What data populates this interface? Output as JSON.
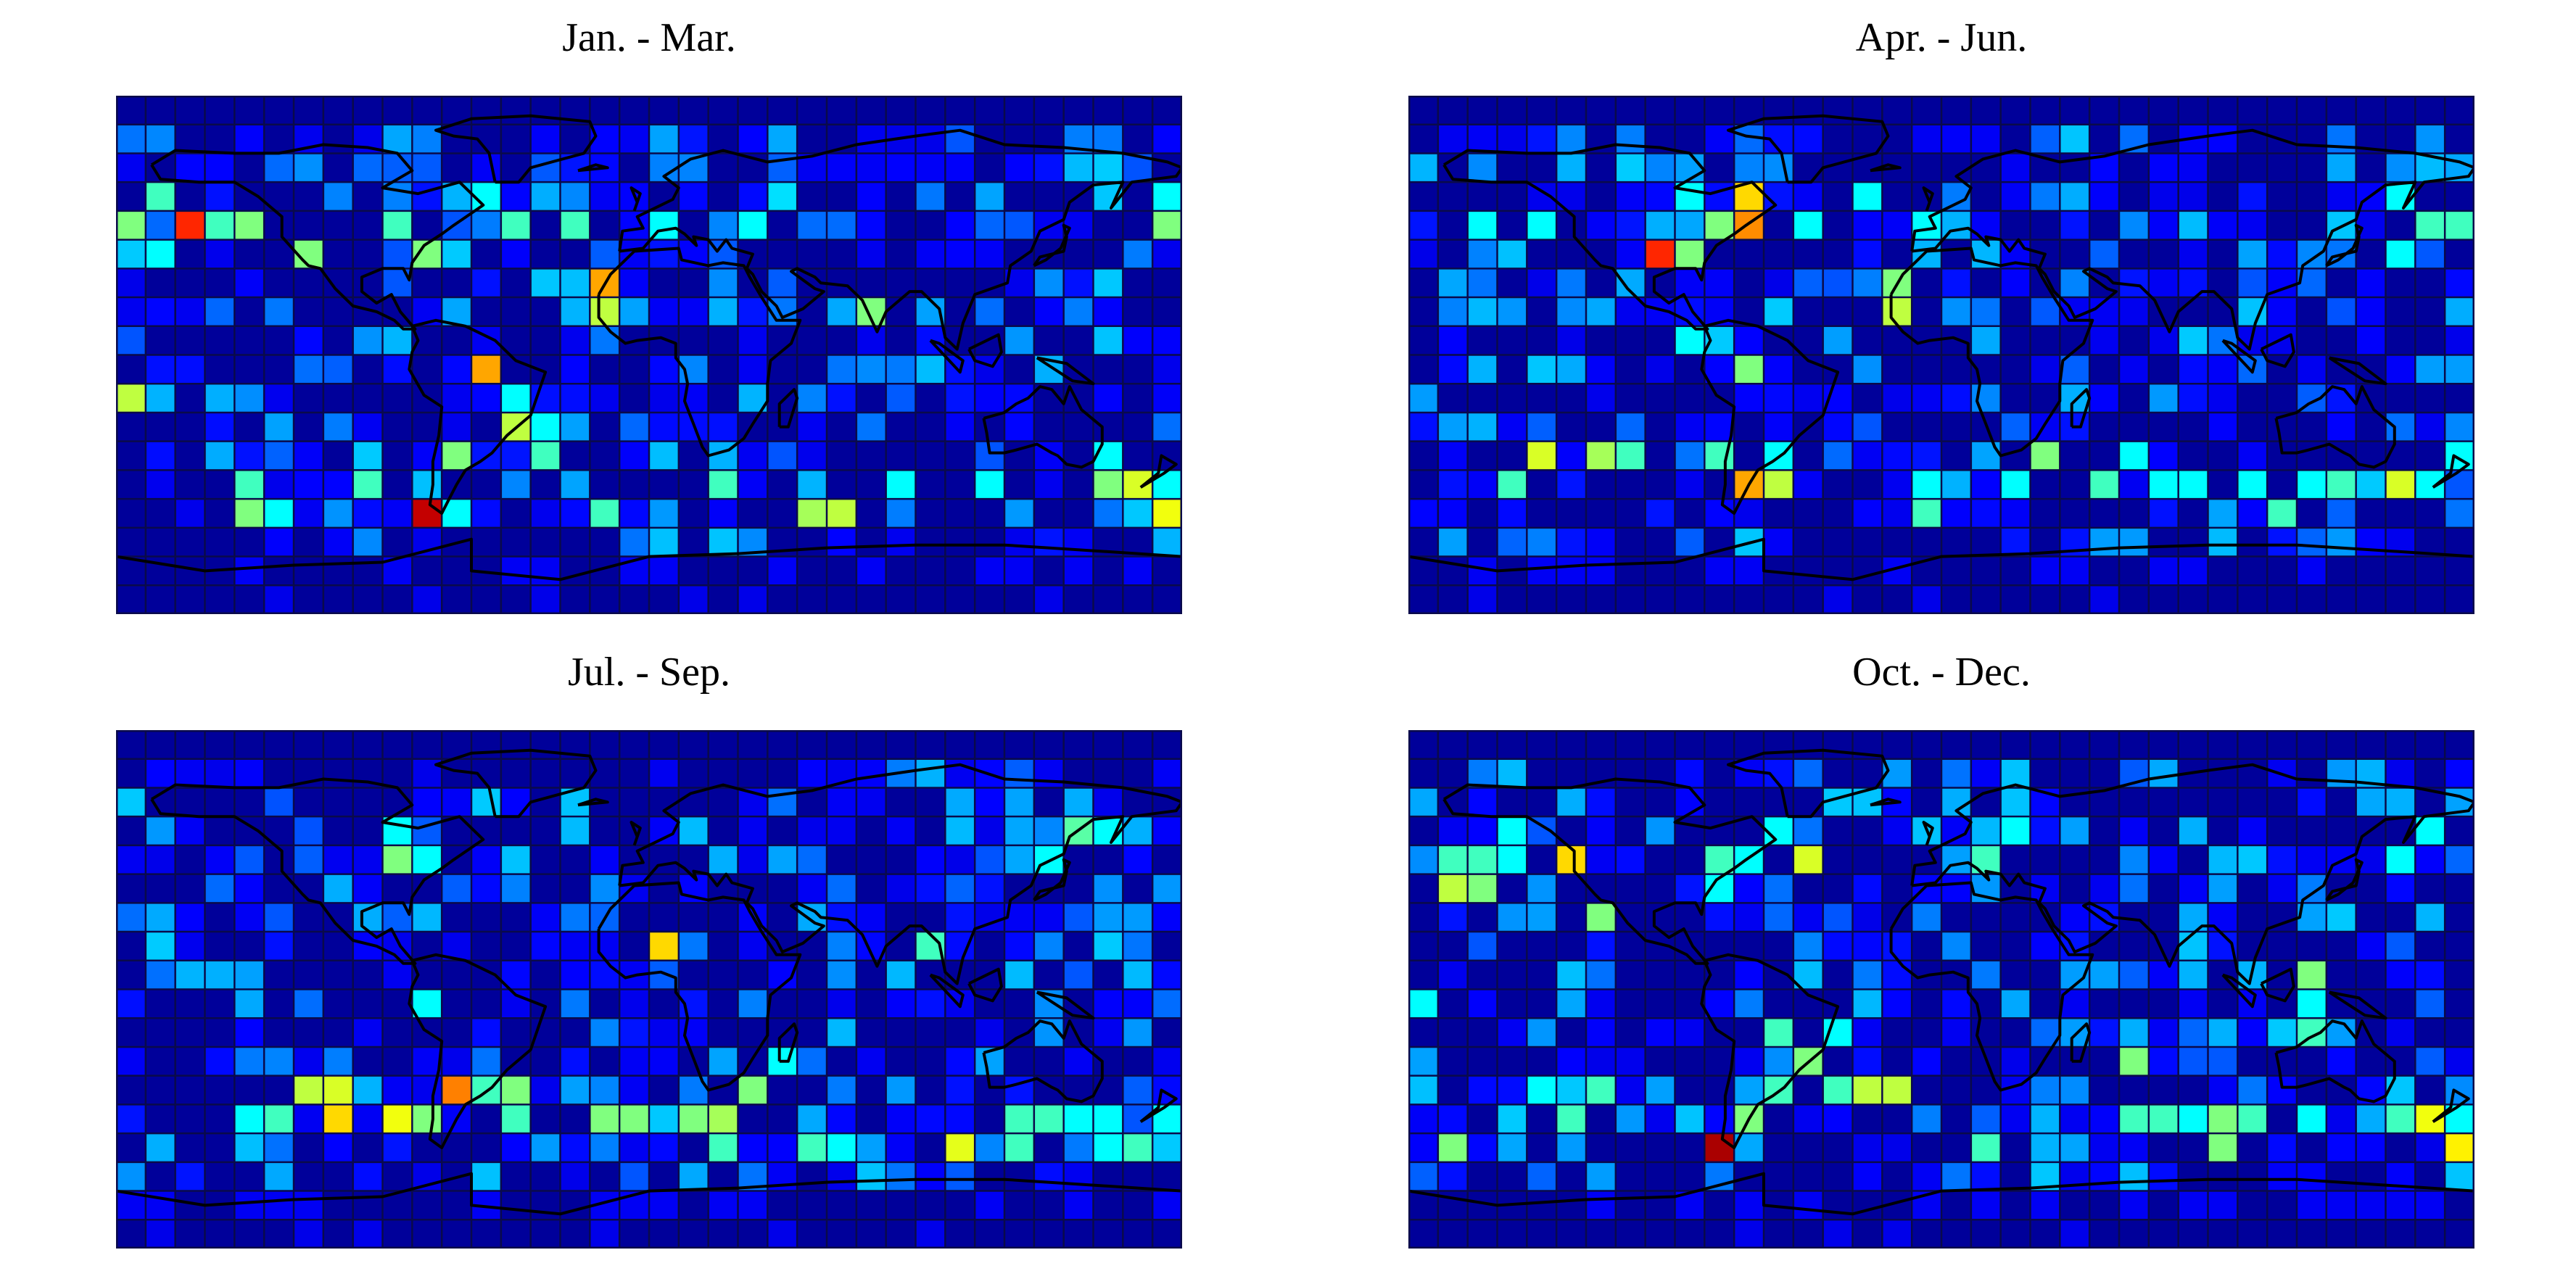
{
  "figure": {
    "colormap": "jet",
    "colormap_stops": [
      "#00008F",
      "#0000FF",
      "#00FFFF",
      "#FFFF00",
      "#FF0000",
      "#800000"
    ],
    "grid_color": "#0a0a4a",
    "coast_color": "#000000",
    "grid": {
      "rows": 18,
      "cols": 36
    }
  },
  "panels": [
    {
      "title": "Jan. - Mar.",
      "hotspots": [
        {
          "r": 4,
          "c": 2,
          "v": 0.82
        },
        {
          "r": 4,
          "c": 0,
          "v": 0.55
        },
        {
          "r": 4,
          "c": 3,
          "v": 0.5
        },
        {
          "r": 4,
          "c": 4,
          "v": 0.55
        },
        {
          "r": 3,
          "c": 1,
          "v": 0.5
        },
        {
          "r": 5,
          "c": 1,
          "v": 0.45
        },
        {
          "r": 5,
          "c": 6,
          "v": 0.55
        },
        {
          "r": 4,
          "c": 9,
          "v": 0.5
        },
        {
          "r": 5,
          "c": 10,
          "v": 0.55
        },
        {
          "r": 3,
          "c": 12,
          "v": 0.45
        },
        {
          "r": 4,
          "c": 13,
          "v": 0.5
        },
        {
          "r": 4,
          "c": 15,
          "v": 0.5
        },
        {
          "r": 6,
          "c": 16,
          "v": 0.72
        },
        {
          "r": 7,
          "c": 16,
          "v": 0.6
        },
        {
          "r": 4,
          "c": 18,
          "v": 0.45
        },
        {
          "r": 4,
          "c": 21,
          "v": 0.45
        },
        {
          "r": 3,
          "c": 22,
          "v": 0.42
        },
        {
          "r": 7,
          "c": 25,
          "v": 0.55
        },
        {
          "r": 9,
          "c": 12,
          "v": 0.72
        },
        {
          "r": 10,
          "c": 0,
          "v": 0.6
        },
        {
          "r": 10,
          "c": 13,
          "v": 0.45
        },
        {
          "r": 11,
          "c": 13,
          "v": 0.6
        },
        {
          "r": 11,
          "c": 14,
          "v": 0.45
        },
        {
          "r": 12,
          "c": 11,
          "v": 0.55
        },
        {
          "r": 12,
          "c": 14,
          "v": 0.5
        },
        {
          "r": 13,
          "c": 4,
          "v": 0.5
        },
        {
          "r": 14,
          "c": 4,
          "v": 0.55
        },
        {
          "r": 14,
          "c": 5,
          "v": 0.45
        },
        {
          "r": 13,
          "c": 8,
          "v": 0.5
        },
        {
          "r": 14,
          "c": 10,
          "v": 0.92
        },
        {
          "r": 14,
          "c": 11,
          "v": 0.45
        },
        {
          "r": 14,
          "c": 16,
          "v": 0.5
        },
        {
          "r": 13,
          "c": 20,
          "v": 0.5
        },
        {
          "r": 14,
          "c": 23,
          "v": 0.58
        },
        {
          "r": 14,
          "c": 24,
          "v": 0.6
        },
        {
          "r": 13,
          "c": 26,
          "v": 0.45
        },
        {
          "r": 13,
          "c": 29,
          "v": 0.45
        },
        {
          "r": 13,
          "c": 33,
          "v": 0.55
        },
        {
          "r": 13,
          "c": 34,
          "v": 0.62
        },
        {
          "r": 14,
          "c": 35,
          "v": 0.64
        },
        {
          "r": 13,
          "c": 35,
          "v": 0.45
        },
        {
          "r": 12,
          "c": 33,
          "v": 0.45
        },
        {
          "r": 4,
          "c": 35,
          "v": 0.55
        },
        {
          "r": 3,
          "c": 35,
          "v": 0.45
        }
      ]
    },
    {
      "title": "Apr. - Jun.",
      "hotspots": [
        {
          "r": 5,
          "c": 8,
          "v": 0.82
        },
        {
          "r": 4,
          "c": 11,
          "v": 0.74
        },
        {
          "r": 3,
          "c": 11,
          "v": 0.68
        },
        {
          "r": 4,
          "c": 10,
          "v": 0.55
        },
        {
          "r": 3,
          "c": 9,
          "v": 0.45
        },
        {
          "r": 5,
          "c": 9,
          "v": 0.55
        },
        {
          "r": 4,
          "c": 2,
          "v": 0.45
        },
        {
          "r": 4,
          "c": 4,
          "v": 0.45
        },
        {
          "r": 4,
          "c": 13,
          "v": 0.45
        },
        {
          "r": 3,
          "c": 15,
          "v": 0.45
        },
        {
          "r": 4,
          "c": 17,
          "v": 0.45
        },
        {
          "r": 4,
          "c": 34,
          "v": 0.5
        },
        {
          "r": 4,
          "c": 35,
          "v": 0.5
        },
        {
          "r": 3,
          "c": 33,
          "v": 0.45
        },
        {
          "r": 5,
          "c": 33,
          "v": 0.45
        },
        {
          "r": 7,
          "c": 16,
          "v": 0.6
        },
        {
          "r": 6,
          "c": 16,
          "v": 0.55
        },
        {
          "r": 9,
          "c": 11,
          "v": 0.55
        },
        {
          "r": 8,
          "c": 9,
          "v": 0.45
        },
        {
          "r": 12,
          "c": 4,
          "v": 0.62
        },
        {
          "r": 12,
          "c": 6,
          "v": 0.58
        },
        {
          "r": 12,
          "c": 7,
          "v": 0.5
        },
        {
          "r": 12,
          "c": 10,
          "v": 0.5
        },
        {
          "r": 13,
          "c": 3,
          "v": 0.5
        },
        {
          "r": 13,
          "c": 11,
          "v": 0.72
        },
        {
          "r": 13,
          "c": 12,
          "v": 0.6
        },
        {
          "r": 12,
          "c": 12,
          "v": 0.45
        },
        {
          "r": 13,
          "c": 17,
          "v": 0.45
        },
        {
          "r": 13,
          "c": 20,
          "v": 0.45
        },
        {
          "r": 14,
          "c": 17,
          "v": 0.5
        },
        {
          "r": 12,
          "c": 21,
          "v": 0.55
        },
        {
          "r": 12,
          "c": 24,
          "v": 0.45
        },
        {
          "r": 13,
          "c": 23,
          "v": 0.5
        },
        {
          "r": 13,
          "c": 25,
          "v": 0.45
        },
        {
          "r": 13,
          "c": 26,
          "v": 0.45
        },
        {
          "r": 13,
          "c": 28,
          "v": 0.45
        },
        {
          "r": 14,
          "c": 29,
          "v": 0.5
        },
        {
          "r": 13,
          "c": 31,
          "v": 0.5
        },
        {
          "r": 13,
          "c": 30,
          "v": 0.45
        },
        {
          "r": 13,
          "c": 33,
          "v": 0.62
        },
        {
          "r": 13,
          "c": 34,
          "v": 0.45
        },
        {
          "r": 12,
          "c": 35,
          "v": 0.45
        }
      ]
    },
    {
      "title": "Jul. - Sep.",
      "hotspots": [
        {
          "r": 4,
          "c": 9,
          "v": 0.55
        },
        {
          "r": 3,
          "c": 9,
          "v": 0.45
        },
        {
          "r": 4,
          "c": 10,
          "v": 0.45
        },
        {
          "r": 3,
          "c": 32,
          "v": 0.52
        },
        {
          "r": 4,
          "c": 31,
          "v": 0.45
        },
        {
          "r": 3,
          "c": 33,
          "v": 0.45
        },
        {
          "r": 7,
          "c": 18,
          "v": 0.68
        },
        {
          "r": 7,
          "c": 27,
          "v": 0.5
        },
        {
          "r": 9,
          "c": 10,
          "v": 0.45
        },
        {
          "r": 11,
          "c": 22,
          "v": 0.45
        },
        {
          "r": 12,
          "c": 6,
          "v": 0.6
        },
        {
          "r": 12,
          "c": 7,
          "v": 0.62
        },
        {
          "r": 13,
          "c": 7,
          "v": 0.68
        },
        {
          "r": 12,
          "c": 11,
          "v": 0.75
        },
        {
          "r": 12,
          "c": 12,
          "v": 0.5
        },
        {
          "r": 13,
          "c": 9,
          "v": 0.64
        },
        {
          "r": 13,
          "c": 10,
          "v": 0.55
        },
        {
          "r": 13,
          "c": 5,
          "v": 0.5
        },
        {
          "r": 13,
          "c": 4,
          "v": 0.45
        },
        {
          "r": 12,
          "c": 13,
          "v": 0.55
        },
        {
          "r": 13,
          "c": 13,
          "v": 0.5
        },
        {
          "r": 13,
          "c": 16,
          "v": 0.55
        },
        {
          "r": 13,
          "c": 17,
          "v": 0.55
        },
        {
          "r": 12,
          "c": 21,
          "v": 0.55
        },
        {
          "r": 13,
          "c": 19,
          "v": 0.55
        },
        {
          "r": 13,
          "c": 20,
          "v": 0.58
        },
        {
          "r": 14,
          "c": 20,
          "v": 0.5
        },
        {
          "r": 14,
          "c": 23,
          "v": 0.5
        },
        {
          "r": 14,
          "c": 24,
          "v": 0.45
        },
        {
          "r": 14,
          "c": 28,
          "v": 0.63
        },
        {
          "r": 13,
          "c": 30,
          "v": 0.5
        },
        {
          "r": 13,
          "c": 31,
          "v": 0.5
        },
        {
          "r": 14,
          "c": 30,
          "v": 0.5
        },
        {
          "r": 13,
          "c": 32,
          "v": 0.45
        },
        {
          "r": 13,
          "c": 33,
          "v": 0.45
        },
        {
          "r": 14,
          "c": 33,
          "v": 0.45
        },
        {
          "r": 13,
          "c": 35,
          "v": 0.45
        },
        {
          "r": 14,
          "c": 34,
          "v": 0.5
        }
      ]
    },
    {
      "title": "Oct. - Dec.",
      "hotspots": [
        {
          "r": 4,
          "c": 1,
          "v": 0.5
        },
        {
          "r": 4,
          "c": 2,
          "v": 0.5
        },
        {
          "r": 4,
          "c": 3,
          "v": 0.45
        },
        {
          "r": 4,
          "c": 5,
          "v": 0.68
        },
        {
          "r": 5,
          "c": 1,
          "v": 0.6
        },
        {
          "r": 5,
          "c": 2,
          "v": 0.55
        },
        {
          "r": 3,
          "c": 3,
          "v": 0.45
        },
        {
          "r": 4,
          "c": 10,
          "v": 0.5
        },
        {
          "r": 4,
          "c": 11,
          "v": 0.45
        },
        {
          "r": 4,
          "c": 13,
          "v": 0.62
        },
        {
          "r": 3,
          "c": 12,
          "v": 0.45
        },
        {
          "r": 5,
          "c": 10,
          "v": 0.45
        },
        {
          "r": 4,
          "c": 19,
          "v": 0.5
        },
        {
          "r": 3,
          "c": 20,
          "v": 0.45
        },
        {
          "r": 4,
          "c": 33,
          "v": 0.45
        },
        {
          "r": 3,
          "c": 34,
          "v": 0.45
        },
        {
          "r": 6,
          "c": 6,
          "v": 0.55
        },
        {
          "r": 8,
          "c": 30,
          "v": 0.55
        },
        {
          "r": 9,
          "c": 30,
          "v": 0.45
        },
        {
          "r": 10,
          "c": 30,
          "v": 0.5
        },
        {
          "r": 9,
          "c": 0,
          "v": 0.45
        },
        {
          "r": 10,
          "c": 12,
          "v": 0.5
        },
        {
          "r": 11,
          "c": 13,
          "v": 0.55
        },
        {
          "r": 10,
          "c": 14,
          "v": 0.45
        },
        {
          "r": 11,
          "c": 24,
          "v": 0.55
        },
        {
          "r": 12,
          "c": 12,
          "v": 0.5
        },
        {
          "r": 13,
          "c": 11,
          "v": 0.55
        },
        {
          "r": 12,
          "c": 15,
          "v": 0.6
        },
        {
          "r": 12,
          "c": 16,
          "v": 0.6
        },
        {
          "r": 12,
          "c": 14,
          "v": 0.5
        },
        {
          "r": 12,
          "c": 4,
          "v": 0.45
        },
        {
          "r": 12,
          "c": 6,
          "v": 0.5
        },
        {
          "r": 13,
          "c": 5,
          "v": 0.5
        },
        {
          "r": 14,
          "c": 10,
          "v": 0.95
        },
        {
          "r": 14,
          "c": 1,
          "v": 0.55
        },
        {
          "r": 14,
          "c": 19,
          "v": 0.5
        },
        {
          "r": 13,
          "c": 24,
          "v": 0.5
        },
        {
          "r": 13,
          "c": 25,
          "v": 0.5
        },
        {
          "r": 13,
          "c": 26,
          "v": 0.45
        },
        {
          "r": 13,
          "c": 27,
          "v": 0.55
        },
        {
          "r": 13,
          "c": 28,
          "v": 0.5
        },
        {
          "r": 14,
          "c": 27,
          "v": 0.55
        },
        {
          "r": 13,
          "c": 30,
          "v": 0.45
        },
        {
          "r": 13,
          "c": 33,
          "v": 0.5
        },
        {
          "r": 13,
          "c": 34,
          "v": 0.64
        },
        {
          "r": 14,
          "c": 35,
          "v": 0.66
        },
        {
          "r": 13,
          "c": 35,
          "v": 0.45
        }
      ]
    }
  ]
}
